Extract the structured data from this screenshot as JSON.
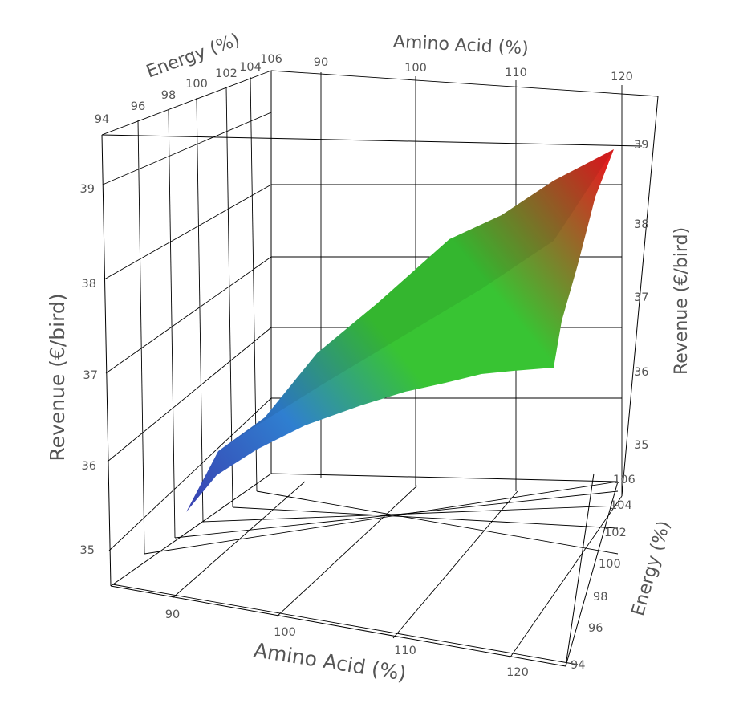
{
  "chart_data": {
    "type": "surface",
    "title": "",
    "x_axis": {
      "label": "Amino Acid (%)",
      "ticks": [
        "90",
        "100",
        "110",
        "120"
      ],
      "range": [
        85,
        121
      ]
    },
    "y_axis": {
      "label": "Energy (%)",
      "ticks": [
        "94",
        "96",
        "98",
        "100",
        "102",
        "104",
        "106"
      ],
      "range": [
        94,
        106
      ]
    },
    "z_axis": {
      "label": "Revenue (€/bird)",
      "ticks_left": [
        "35",
        "36",
        "37",
        "38",
        "39"
      ],
      "ticks_right": [
        "35",
        "36",
        "37",
        "38",
        "39"
      ],
      "range": [
        34.5,
        39.5
      ]
    },
    "surface": {
      "amino_acid": [
        88,
        92,
        96,
        100,
        104,
        108,
        112,
        116,
        120
      ],
      "energy": [
        94,
        106
      ],
      "revenue": [
        [
          35.3,
          35.9,
          36.4,
          36.8,
          37.3,
          37.9,
          38.5,
          38.9,
          39.4
        ],
        [
          35.6,
          35.85,
          36.1,
          36.4,
          36.75,
          37.2,
          37.7,
          38.1,
          38.5
        ]
      ]
    },
    "colorscale": [
      "#3a3fb0",
      "#2f7fd0",
      "#38c433",
      "#e02020"
    ],
    "grid": true
  }
}
